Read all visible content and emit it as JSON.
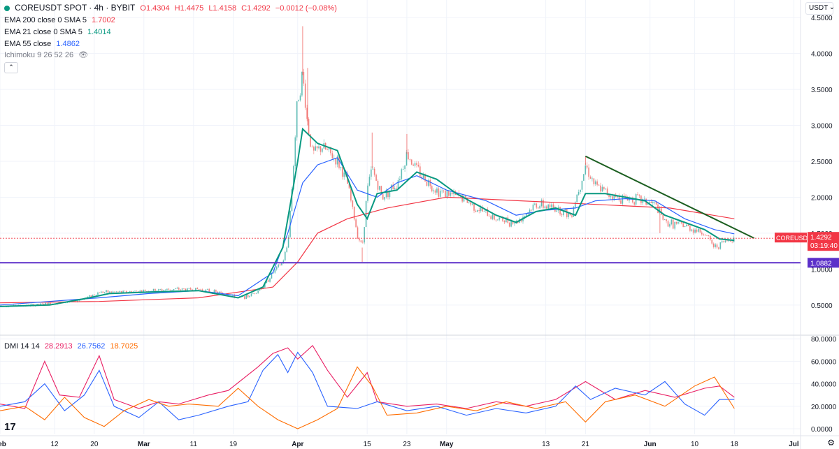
{
  "header": {
    "symbol_title": "COREUSDT SPOT · 4h · BYBIT",
    "ohlc": {
      "o": "O1.4304",
      "h": "H1.4475",
      "l": "L1.4158",
      "c": "C1.4292",
      "chg": "−0.0012 (−0.08%)"
    },
    "currency": "USDT"
  },
  "indicators": [
    {
      "label": "EMA 200 close 0 SMA 5",
      "value": "1.7002",
      "color": "#f23645"
    },
    {
      "label": "EMA 21 close 0 SMA 5",
      "value": "1.4014",
      "color": "#089981"
    },
    {
      "label": "EMA 55 close",
      "value": "1.4862",
      "color": "#2962ff"
    },
    {
      "label": "Ichimoku 9 26 52 26",
      "value": "",
      "color": "#787b86"
    }
  ],
  "dmi_legend": {
    "label": "DMI 14 14",
    "v1": "28.2913",
    "v2": "26.7562",
    "v3": "18.7025"
  },
  "price_labels": {
    "symbol": "COREUSDT",
    "last": "1.4292",
    "countdown": "03:19:40",
    "line": "1.0882"
  },
  "chart_data": [
    {
      "type": "candlestick",
      "title": "COREUSDT SPOT · 4h · BYBIT",
      "x_ticks": [
        "Feb",
        "12",
        "20",
        "Mar",
        "11",
        "19",
        "Apr",
        "15",
        "23",
        "May",
        "13",
        "21",
        "Jun",
        "10",
        "18",
        "Jul"
      ],
      "y_ticks": [
        "0.5000",
        "1.0000",
        "1.5000",
        "2.0000",
        "2.5000",
        "3.0000",
        "3.5000",
        "4.0000",
        "4.5000"
      ],
      "ylim": [
        0.1,
        4.55
      ],
      "x_range_days": [
        0,
        155
      ],
      "x_tick_days": [
        0,
        11,
        19,
        29,
        39,
        47,
        60,
        74,
        82,
        90,
        110,
        118,
        131,
        140,
        148,
        160
      ],
      "price_path": [
        [
          0,
          0.49
        ],
        [
          5,
          0.49
        ],
        [
          10,
          0.52
        ],
        [
          15,
          0.55
        ],
        [
          18,
          0.62
        ],
        [
          20,
          0.68
        ],
        [
          25,
          0.68
        ],
        [
          30,
          0.7
        ],
        [
          35,
          0.72
        ],
        [
          40,
          0.72
        ],
        [
          45,
          0.66
        ],
        [
          48,
          0.6
        ],
        [
          50,
          0.62
        ],
        [
          53,
          0.75
        ],
        [
          55,
          0.95
        ],
        [
          57,
          1.1
        ],
        [
          58,
          1.35
        ],
        [
          59,
          2.3
        ],
        [
          60,
          3.4
        ],
        [
          61,
          3.7
        ],
        [
          62,
          3.0
        ],
        [
          63,
          2.6
        ],
        [
          65,
          2.7
        ],
        [
          68,
          2.5
        ],
        [
          70,
          2.2
        ],
        [
          72,
          1.5
        ],
        [
          73,
          1.3
        ],
        [
          74,
          2.1
        ],
        [
          75,
          2.4
        ],
        [
          77,
          2.0
        ],
        [
          80,
          2.2
        ],
        [
          82,
          2.6
        ],
        [
          83,
          2.5
        ],
        [
          85,
          2.3
        ],
        [
          88,
          2.1
        ],
        [
          90,
          2.05
        ],
        [
          93,
          2.0
        ],
        [
          96,
          1.85
        ],
        [
          100,
          1.7
        ],
        [
          104,
          1.65
        ],
        [
          108,
          1.9
        ],
        [
          112,
          1.85
        ],
        [
          115,
          1.75
        ],
        [
          117,
          2.2
        ],
        [
          118,
          2.45
        ],
        [
          120,
          2.15
        ],
        [
          124,
          2.0
        ],
        [
          128,
          1.98
        ],
        [
          132,
          1.9
        ],
        [
          134,
          1.65
        ],
        [
          138,
          1.6
        ],
        [
          142,
          1.5
        ],
        [
          144,
          1.3
        ],
        [
          146,
          1.38
        ],
        [
          148,
          1.43
        ]
      ],
      "spikes": [
        [
          61,
          4.38
        ],
        [
          62,
          3.8
        ],
        [
          73,
          1.1
        ],
        [
          75,
          2.9
        ],
        [
          82,
          2.88
        ],
        [
          118,
          2.57
        ],
        [
          133,
          1.5
        ]
      ],
      "ema200": [
        [
          0,
          0.53
        ],
        [
          20,
          0.55
        ],
        [
          40,
          0.6
        ],
        [
          55,
          0.75
        ],
        [
          60,
          1.1
        ],
        [
          64,
          1.5
        ],
        [
          70,
          1.7
        ],
        [
          78,
          1.85
        ],
        [
          90,
          2.0
        ],
        [
          105,
          1.95
        ],
        [
          120,
          1.9
        ],
        [
          135,
          1.85
        ],
        [
          148,
          1.7
        ]
      ],
      "ema21": [
        [
          0,
          0.48
        ],
        [
          10,
          0.5
        ],
        [
          18,
          0.6
        ],
        [
          22,
          0.66
        ],
        [
          30,
          0.68
        ],
        [
          40,
          0.7
        ],
        [
          48,
          0.6
        ],
        [
          53,
          0.75
        ],
        [
          57,
          1.3
        ],
        [
          60,
          2.5
        ],
        [
          61,
          2.95
        ],
        [
          64,
          2.75
        ],
        [
          68,
          2.65
        ],
        [
          72,
          1.9
        ],
        [
          74,
          1.7
        ],
        [
          76,
          2.05
        ],
        [
          80,
          2.1
        ],
        [
          84,
          2.35
        ],
        [
          88,
          2.25
        ],
        [
          92,
          2.05
        ],
        [
          96,
          1.9
        ],
        [
          100,
          1.75
        ],
        [
          104,
          1.65
        ],
        [
          108,
          1.8
        ],
        [
          112,
          1.85
        ],
        [
          116,
          1.75
        ],
        [
          118,
          2.05
        ],
        [
          122,
          2.05
        ],
        [
          126,
          2.0
        ],
        [
          130,
          1.95
        ],
        [
          134,
          1.75
        ],
        [
          138,
          1.65
        ],
        [
          142,
          1.55
        ],
        [
          145,
          1.42
        ],
        [
          148,
          1.4
        ]
      ],
      "ema55": [
        [
          0,
          0.5
        ],
        [
          20,
          0.6
        ],
        [
          30,
          0.66
        ],
        [
          40,
          0.7
        ],
        [
          48,
          0.63
        ],
        [
          55,
          0.95
        ],
        [
          58,
          1.5
        ],
        [
          61,
          2.2
        ],
        [
          64,
          2.45
        ],
        [
          68,
          2.55
        ],
        [
          72,
          2.1
        ],
        [
          76,
          2.0
        ],
        [
          80,
          2.2
        ],
        [
          84,
          2.3
        ],
        [
          90,
          2.1
        ],
        [
          98,
          1.95
        ],
        [
          104,
          1.75
        ],
        [
          110,
          1.82
        ],
        [
          116,
          1.85
        ],
        [
          120,
          1.95
        ],
        [
          126,
          1.98
        ],
        [
          132,
          1.95
        ],
        [
          138,
          1.7
        ],
        [
          144,
          1.55
        ],
        [
          148,
          1.49
        ]
      ],
      "trendline": [
        [
          118,
          2.57
        ],
        [
          152,
          1.43
        ]
      ],
      "support_line": 1.0882
    },
    {
      "type": "line",
      "title": "DMI 14 14",
      "y_ticks": [
        "0.0000",
        "20.0000",
        "40.0000",
        "60.0000",
        "80.0000"
      ],
      "ylim": [
        -5,
        82
      ],
      "series": [
        {
          "name": "28.2913",
          "color": "#e91e63",
          "values": [
            [
              0,
              22
            ],
            [
              5,
              18
            ],
            [
              9,
              60
            ],
            [
              12,
              30
            ],
            [
              16,
              28
            ],
            [
              20,
              65
            ],
            [
              23,
              26
            ],
            [
              28,
              18
            ],
            [
              32,
              24
            ],
            [
              36,
              22
            ],
            [
              42,
              30
            ],
            [
              46,
              34
            ],
            [
              52,
              55
            ],
            [
              55,
              67
            ],
            [
              58,
              72
            ],
            [
              60,
              62
            ],
            [
              63,
              74
            ],
            [
              66,
              52
            ],
            [
              70,
              28
            ],
            [
              74,
              50
            ],
            [
              76,
              24
            ],
            [
              82,
              20
            ],
            [
              88,
              22
            ],
            [
              94,
              18
            ],
            [
              100,
              24
            ],
            [
              106,
              20
            ],
            [
              112,
              26
            ],
            [
              118,
              42
            ],
            [
              124,
              26
            ],
            [
              130,
              34
            ],
            [
              136,
              28
            ],
            [
              142,
              36
            ],
            [
              145,
              38
            ],
            [
              148,
              28
            ]
          ]
        },
        {
          "name": "26.7562",
          "color": "#2962ff",
          "values": [
            [
              0,
              20
            ],
            [
              5,
              24
            ],
            [
              9,
              40
            ],
            [
              13,
              16
            ],
            [
              17,
              30
            ],
            [
              20,
              52
            ],
            [
              23,
              20
            ],
            [
              28,
              10
            ],
            [
              32,
              24
            ],
            [
              36,
              8
            ],
            [
              40,
              12
            ],
            [
              46,
              20
            ],
            [
              50,
              24
            ],
            [
              53,
              52
            ],
            [
              56,
              66
            ],
            [
              58,
              50
            ],
            [
              60,
              68
            ],
            [
              63,
              50
            ],
            [
              66,
              20
            ],
            [
              72,
              18
            ],
            [
              76,
              24
            ],
            [
              82,
              16
            ],
            [
              88,
              20
            ],
            [
              94,
              12
            ],
            [
              100,
              18
            ],
            [
              106,
              14
            ],
            [
              112,
              20
            ],
            [
              116,
              38
            ],
            [
              119,
              26
            ],
            [
              124,
              36
            ],
            [
              130,
              30
            ],
            [
              134,
              42
            ],
            [
              138,
              22
            ],
            [
              142,
              12
            ],
            [
              145,
              26
            ],
            [
              148,
              26
            ]
          ]
        },
        {
          "name": "18.7025",
          "color": "#ff6d00",
          "values": [
            [
              0,
              16
            ],
            [
              5,
              20
            ],
            [
              9,
              8
            ],
            [
              13,
              28
            ],
            [
              17,
              10
            ],
            [
              21,
              2
            ],
            [
              25,
              16
            ],
            [
              30,
              26
            ],
            [
              34,
              20
            ],
            [
              38,
              22
            ],
            [
              44,
              20
            ],
            [
              48,
              36
            ],
            [
              52,
              20
            ],
            [
              56,
              8
            ],
            [
              60,
              0
            ],
            [
              64,
              8
            ],
            [
              68,
              18
            ],
            [
              72,
              55
            ],
            [
              75,
              38
            ],
            [
              78,
              12
            ],
            [
              84,
              14
            ],
            [
              90,
              20
            ],
            [
              96,
              16
            ],
            [
              102,
              24
            ],
            [
              108,
              18
            ],
            [
              114,
              24
            ],
            [
              118,
              6
            ],
            [
              122,
              24
            ],
            [
              128,
              30
            ],
            [
              134,
              20
            ],
            [
              140,
              38
            ],
            [
              144,
              46
            ],
            [
              148,
              18
            ]
          ]
        }
      ]
    }
  ]
}
